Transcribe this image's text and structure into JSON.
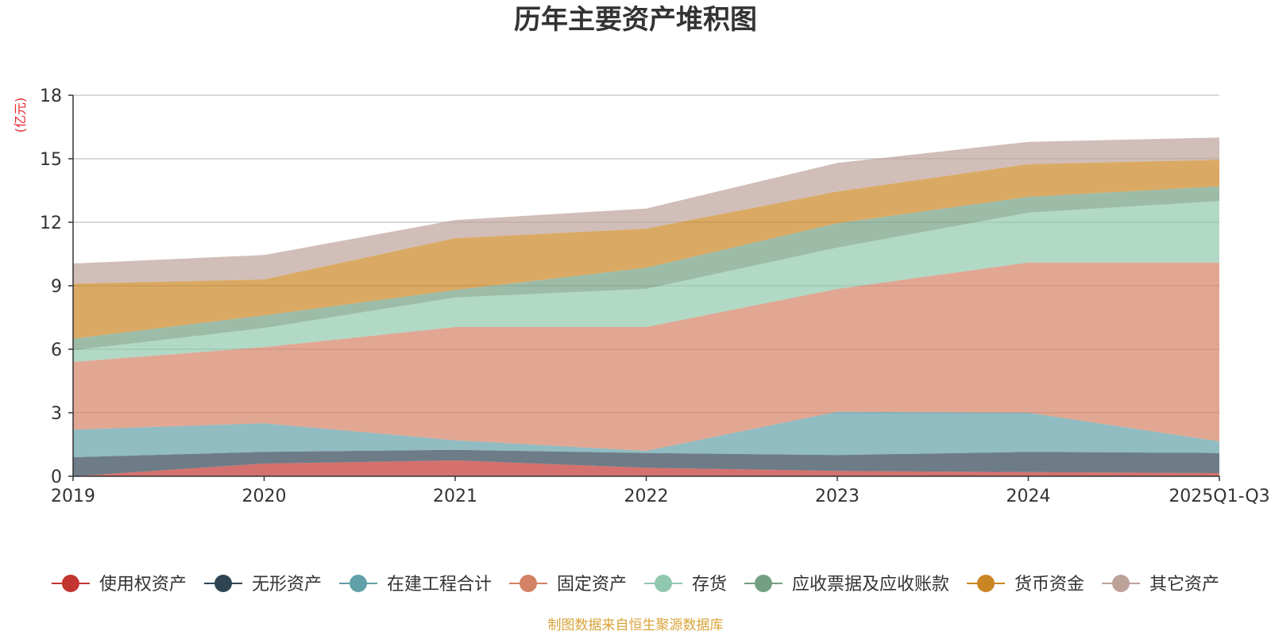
{
  "chart_data": {
    "type": "area",
    "stacked": true,
    "title": "历年主要资产堆积图",
    "ylabel": "(亿元)",
    "xlabel": "",
    "categories": [
      "2019",
      "2020",
      "2021",
      "2022",
      "2023",
      "2024",
      "2025Q1-Q3"
    ],
    "ylim": [
      0,
      18
    ],
    "yticks": [
      "0",
      "3",
      "6",
      "9",
      "12",
      "15",
      "18"
    ],
    "grid": true,
    "legend_position": "bottom",
    "series": [
      {
        "name": "使用权资产",
        "color": "#c23531",
        "values": [
          0.0,
          0.6,
          0.75,
          0.4,
          0.25,
          0.2,
          0.15
        ]
      },
      {
        "name": "无形资产",
        "color": "#2f4554",
        "values": [
          0.9,
          0.55,
          0.5,
          0.7,
          0.75,
          0.95,
          0.95
        ]
      },
      {
        "name": "在建工程合计",
        "color": "#61a0a8",
        "values": [
          1.3,
          1.35,
          0.45,
          0.1,
          2.05,
          1.85,
          0.55
        ]
      },
      {
        "name": "固定资产",
        "color": "#d48265",
        "values": [
          3.2,
          3.6,
          5.35,
          5.85,
          5.8,
          7.1,
          8.45
        ]
      },
      {
        "name": "存货",
        "color": "#91c7ae",
        "values": [
          0.55,
          0.9,
          1.4,
          1.8,
          1.95,
          2.35,
          2.9
        ]
      },
      {
        "name": "应收票据及应收账款",
        "color": "#749f83",
        "values": [
          0.55,
          0.6,
          0.35,
          1.0,
          1.15,
          0.75,
          0.7
        ]
      },
      {
        "name": "货币资金",
        "color": "#ca8622",
        "values": [
          2.6,
          1.7,
          2.45,
          1.85,
          1.5,
          1.55,
          1.25
        ]
      },
      {
        "name": "其它资产",
        "color": "#bda29a",
        "values": [
          0.95,
          1.15,
          0.85,
          0.95,
          1.35,
          1.05,
          1.05
        ]
      }
    ]
  },
  "source_note": "制图数据来自恒生聚源数据库",
  "colors": {
    "unit": "#e8262a",
    "source": "#d9a43a",
    "grid": "#cccccc",
    "axis": "#333333"
  }
}
